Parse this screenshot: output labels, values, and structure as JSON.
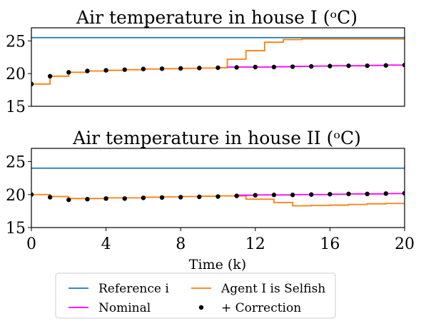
{
  "colors": {
    "reference": "#1f77b4",
    "selfish": "#ff7f0e",
    "nominal": "#ff00ff",
    "correction": "#000000"
  },
  "chart_data": [
    {
      "type": "line",
      "title": "Air temperature in house I (ᵒC)",
      "xlim": [
        0,
        20
      ],
      "ylim": [
        15,
        27
      ],
      "yticks": [
        "15",
        "20",
        "25"
      ],
      "show_xticks": false,
      "series": [
        {
          "name": "Reference i",
          "kind": "hline",
          "y": 25.5
        },
        {
          "name": "Agent I is Selfish",
          "kind": "step",
          "x": [
            0,
            1,
            2,
            3,
            4,
            5,
            6,
            7,
            8,
            9,
            10,
            10.5,
            11.5,
            12.5,
            13.5,
            14.5,
            15,
            16,
            17,
            18,
            19,
            20
          ],
          "y": [
            18.4,
            19.6,
            20.2,
            20.4,
            20.5,
            20.6,
            20.7,
            20.75,
            20.8,
            20.85,
            20.9,
            22.2,
            23.5,
            24.8,
            25.2,
            25.3,
            25.3,
            25.3,
            25.3,
            25.3,
            25.3,
            25.3
          ]
        },
        {
          "name": "Nominal",
          "kind": "step",
          "x": [
            10.5,
            11,
            12,
            13,
            14,
            15,
            16,
            17,
            18,
            19,
            20
          ],
          "y": [
            21.0,
            21.0,
            21.0,
            21.05,
            21.1,
            21.15,
            21.2,
            21.2,
            21.25,
            21.3,
            21.35
          ]
        },
        {
          "name": "+ Correction",
          "kind": "points",
          "x": [
            0,
            1,
            2,
            3,
            4,
            5,
            6,
            7,
            8,
            9,
            10,
            11,
            12,
            13,
            14,
            15,
            16,
            17,
            18,
            19,
            20
          ],
          "y": [
            18.4,
            19.6,
            20.2,
            20.4,
            20.5,
            20.6,
            20.7,
            20.75,
            20.8,
            20.85,
            20.9,
            20.95,
            21.0,
            21.0,
            21.05,
            21.1,
            21.15,
            21.2,
            21.2,
            21.25,
            21.3
          ]
        }
      ]
    },
    {
      "type": "line",
      "title": "Air temperature in house II (ᵒC)",
      "xlim": [
        0,
        20
      ],
      "ylim": [
        15,
        27
      ],
      "yticks": [
        "15",
        "20",
        "25"
      ],
      "xticks": [
        "0",
        "4",
        "8",
        "12",
        "16",
        "20"
      ],
      "xlabel": "Time (k)",
      "series": [
        {
          "name": "Reference i",
          "kind": "hline",
          "y": 24.0
        },
        {
          "name": "Agent I is Selfish",
          "kind": "step",
          "x": [
            0,
            1,
            2,
            3,
            4,
            5,
            6,
            7,
            8,
            9,
            10,
            10.5,
            11.5,
            12,
            13,
            14,
            15,
            16,
            17,
            18,
            19,
            20
          ],
          "y": [
            20.0,
            19.7,
            19.4,
            19.4,
            19.5,
            19.5,
            19.6,
            19.65,
            19.7,
            19.75,
            19.8,
            19.8,
            19.3,
            19.3,
            18.8,
            18.3,
            18.35,
            18.4,
            18.5,
            18.6,
            18.65,
            18.7
          ]
        },
        {
          "name": "Nominal",
          "kind": "step",
          "x": [
            11,
            12,
            13,
            14,
            15,
            16,
            17,
            18,
            19,
            20
          ],
          "y": [
            19.9,
            19.95,
            19.95,
            20.0,
            20.0,
            20.05,
            20.1,
            20.1,
            20.15,
            20.2
          ]
        },
        {
          "name": "+ Correction",
          "kind": "points",
          "x": [
            0,
            1,
            2,
            3,
            4,
            5,
            6,
            7,
            8,
            9,
            10,
            11,
            12,
            13,
            14,
            15,
            16,
            17,
            18,
            19,
            20
          ],
          "y": [
            20.0,
            19.6,
            19.2,
            19.3,
            19.4,
            19.4,
            19.5,
            19.55,
            19.6,
            19.65,
            19.7,
            19.8,
            19.9,
            19.95,
            19.95,
            20.0,
            20.05,
            20.1,
            20.1,
            20.15,
            20.2
          ]
        }
      ]
    }
  ],
  "legend": {
    "entries": [
      {
        "label": "Reference i",
        "kind": "line",
        "color": "#1f77b4"
      },
      {
        "label": "Agent I is Selfish",
        "kind": "line",
        "color": "#ff7f0e"
      },
      {
        "label": "Nominal",
        "kind": "line",
        "color": "#ff00ff"
      },
      {
        "label": "+ Correction",
        "kind": "dot",
        "color": "#000000"
      }
    ]
  }
}
